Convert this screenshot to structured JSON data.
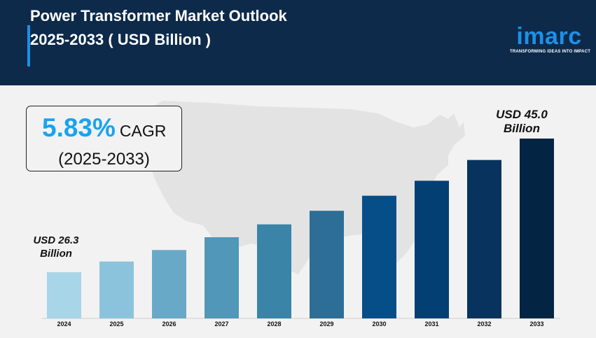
{
  "header": {
    "title_line1": "Power Transformer Market Outlook",
    "title_line2": "2025-2033 ( USD Billion )"
  },
  "logo": {
    "word": "imarc",
    "tagline": "TRANSFORMING IDEAS INTO IMPACT"
  },
  "cagr": {
    "value": "5.83%",
    "label": "CAGR",
    "period": "(2025-2033)"
  },
  "callouts": {
    "start_line1": "USD 26.3",
    "start_line2": "Billion",
    "end_line1": "USD 45.0",
    "end_line2": "Billion"
  },
  "colors": {
    "header_bg": "#0d2a4a",
    "accent": "#1e90e8",
    "cagr_value": "#1aa3f0",
    "bars": [
      "#a8d5e8",
      "#8cc3dc",
      "#68a9c8",
      "#5197b8",
      "#3a84a8",
      "#2d6e96",
      "#064e88",
      "#043f74",
      "#07335e",
      "#042443"
    ]
  },
  "chart_data": {
    "type": "bar",
    "categories": [
      "2024",
      "2025",
      "2026",
      "2027",
      "2028",
      "2029",
      "2030",
      "2031",
      "2032",
      "2033"
    ],
    "values": [
      26.3,
      27.8,
      29.4,
      31.2,
      33.0,
      34.9,
      37.0,
      39.1,
      42.0,
      45.0
    ],
    "title": "Power Transformer Market Outlook 2025-2033 ( USD Billion )",
    "xlabel": "",
    "ylabel": "",
    "grid": false,
    "legend": "none"
  }
}
